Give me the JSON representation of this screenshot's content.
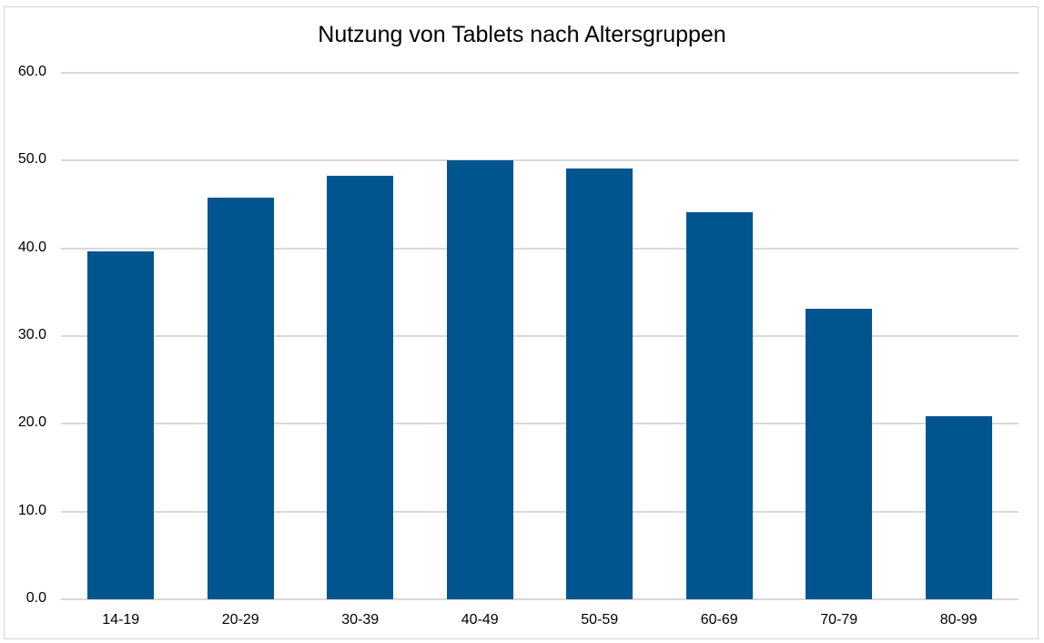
{
  "chart_data": {
    "type": "bar",
    "title": "Nutzung von Tablets nach Altersgruppen",
    "xlabel": "",
    "ylabel": "",
    "categories": [
      "14-19",
      "20-29",
      "30-39",
      "40-49",
      "50-59",
      "60-69",
      "70-79",
      "80-99"
    ],
    "values": [
      39.7,
      45.8,
      48.3,
      50.0,
      49.1,
      44.1,
      33.1,
      20.9
    ],
    "ylim": [
      0,
      60
    ],
    "yticks": [
      "0.0",
      "10.0",
      "20.0",
      "30.0",
      "40.0",
      "50.0",
      "60.0"
    ],
    "grid": true,
    "legend": null,
    "bar_color": "#00558f"
  }
}
